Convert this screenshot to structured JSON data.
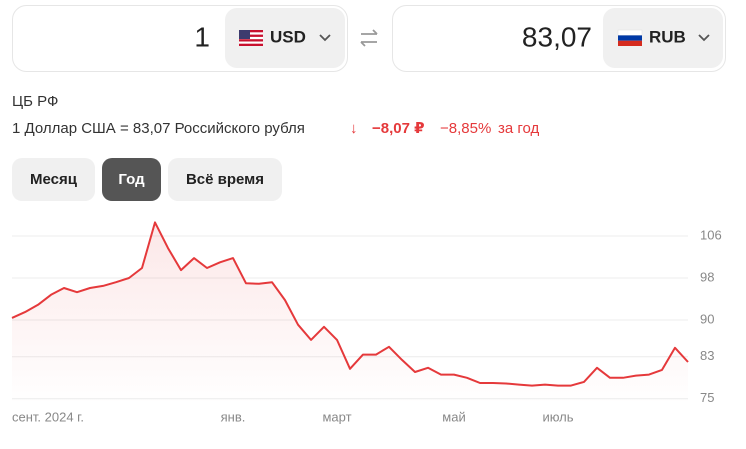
{
  "converter": {
    "from": {
      "amount": "1",
      "currency": "USD"
    },
    "to": {
      "amount": "83,07",
      "currency": "RUB"
    }
  },
  "source": "ЦБ РФ",
  "rate_text": "1 Доллар США = 83,07 Российского рубля",
  "change": {
    "arrow": "↓",
    "abs": "−8,07 ₽",
    "pct": "−8,85%",
    "period": "за год"
  },
  "tabs": [
    {
      "label": "Месяц",
      "selected": false
    },
    {
      "label": "Год",
      "selected": true
    },
    {
      "label": "Всё время",
      "selected": false
    }
  ],
  "chart_data": {
    "type": "line",
    "color": "#e5393b",
    "values": [
      90.4,
      91.5,
      92.9,
      94.8,
      96.1,
      95.3,
      96.1,
      96.5,
      97.2,
      98,
      99.9,
      108.6,
      103.7,
      99.5,
      101.8,
      99.9,
      101,
      101.8,
      97,
      96.9,
      97.2,
      93.8,
      89.1,
      86.2,
      88.7,
      86.2,
      80.7,
      83.4,
      83.4,
      84.9,
      82.4,
      80.1,
      80.9,
      79.6,
      79.6,
      79,
      78,
      78,
      77.9,
      77.7,
      77.5,
      77.7,
      77.5,
      77.5,
      78.2,
      80.9,
      79,
      79,
      79.4,
      79.6,
      80.5,
      84.7,
      82
    ],
    "xlim": [
      0,
      52
    ],
    "xticks": [
      {
        "value": 0,
        "label": "сент. 2024 г."
      },
      {
        "value": 17,
        "label": "янв."
      },
      {
        "value": 25,
        "label": "март"
      },
      {
        "value": 34,
        "label": "май"
      },
      {
        "value": 42,
        "label": "июль"
      }
    ],
    "ylim": [
      74,
      110
    ],
    "yticks": [
      75,
      83,
      90,
      98,
      106
    ],
    "grid": true
  }
}
